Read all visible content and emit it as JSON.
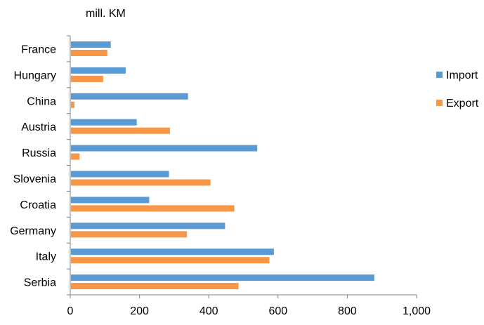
{
  "chart_data": {
    "type": "bar",
    "orientation": "horizontal",
    "unit_label": "mill. KM",
    "categories": [
      "France",
      "Hungary",
      "China",
      "Austria",
      "Russia",
      "Slovenia",
      "Croatia",
      "Germany",
      "Italy",
      "Serbia"
    ],
    "series": [
      {
        "name": "Import",
        "color": "#5b9bd5",
        "values": [
          117,
          160,
          340,
          192,
          540,
          285,
          228,
          447,
          588,
          878
        ]
      },
      {
        "name": "Export",
        "color": "#f79646",
        "values": [
          107,
          95,
          12,
          288,
          27,
          405,
          474,
          337,
          575,
          486
        ]
      }
    ],
    "xlim": [
      0,
      1000
    ],
    "xticks": [
      0,
      200,
      400,
      600,
      800,
      1000
    ],
    "xtick_labels": [
      "0",
      "200",
      "400",
      "600",
      "800",
      "1,000"
    ],
    "grid": false,
    "legend_position": "right"
  }
}
